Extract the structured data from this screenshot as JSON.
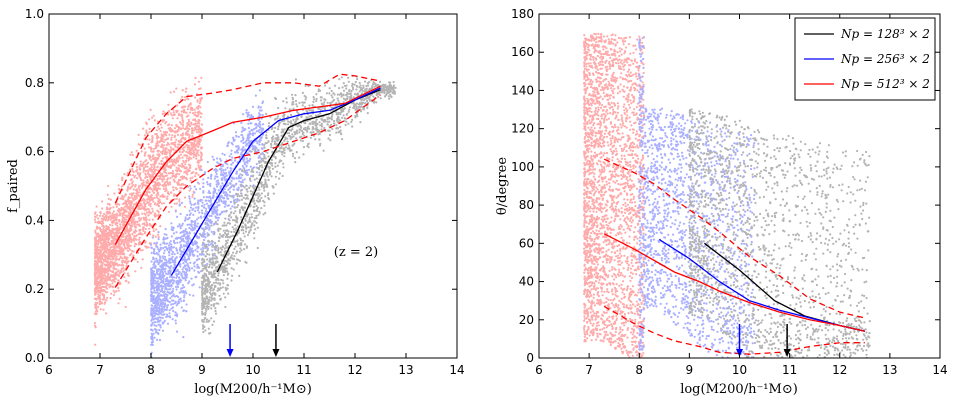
{
  "chart_data": [
    {
      "type": "scatter",
      "panel": "left",
      "xlabel": "log(M200/h⁻¹M⊙)",
      "ylabel": "f_paired",
      "xlim": [
        6,
        14
      ],
      "ylim": [
        0.0,
        1.0
      ],
      "xticks": [
        "6",
        "7",
        "8",
        "9",
        "10",
        "11",
        "12",
        "13",
        "14"
      ],
      "yticks": [
        "0.0",
        "0.2",
        "0.4",
        "0.6",
        "0.8",
        "1.0"
      ],
      "annotation": "(z = 2)",
      "series": [
        {
          "name": "Np = 128³ × 2",
          "color": "#000000",
          "x": [
            9.3,
            9.7,
            10.0,
            10.3,
            10.7,
            11.0,
            11.5,
            12.0,
            12.5
          ],
          "y": [
            0.25,
            0.37,
            0.47,
            0.57,
            0.67,
            0.69,
            0.71,
            0.75,
            0.78
          ]
        },
        {
          "name": "Np = 256³ × 2",
          "color": "#0000ff",
          "x": [
            8.4,
            8.8,
            9.2,
            9.6,
            10.0,
            10.5,
            11.0,
            11.5,
            12.0,
            12.5
          ],
          "y": [
            0.24,
            0.34,
            0.44,
            0.54,
            0.63,
            0.69,
            0.71,
            0.72,
            0.75,
            0.785
          ]
        },
        {
          "name": "Np = 512³ × 2",
          "color": "#ff0000",
          "x": [
            7.3,
            7.9,
            8.3,
            8.7,
            9.2,
            9.6,
            10.2,
            10.8,
            11.3,
            11.8,
            12.5
          ],
          "y": [
            0.33,
            0.49,
            0.57,
            0.63,
            0.66,
            0.685,
            0.7,
            0.72,
            0.73,
            0.74,
            0.79
          ]
        },
        {
          "name": "Np = 512³ × 2 upper",
          "color": "#ff0000",
          "dashed": true,
          "x": [
            7.3,
            7.9,
            8.3,
            8.7,
            9.2,
            9.6,
            10.2,
            10.8,
            11.3,
            11.7,
            12.0,
            12.5
          ],
          "y": [
            0.45,
            0.64,
            0.71,
            0.76,
            0.77,
            0.78,
            0.8,
            0.8,
            0.79,
            0.825,
            0.82,
            0.805
          ]
        },
        {
          "name": "Np = 512³ × 2 lower",
          "color": "#ff0000",
          "dashed": true,
          "x": [
            7.3,
            7.9,
            8.3,
            8.7,
            9.2,
            9.6,
            10.2,
            10.8,
            11.3,
            11.8,
            12.5
          ],
          "y": [
            0.205,
            0.35,
            0.44,
            0.5,
            0.55,
            0.58,
            0.6,
            0.63,
            0.655,
            0.69,
            0.765
          ]
        }
      ],
      "scatter_clouds": [
        {
          "name": "Np = 512³ × 2 halos",
          "color": "#ffaaaa",
          "xrange": [
            6.9,
            9.0
          ]
        },
        {
          "name": "Np = 256³ × 2 halos",
          "color": "#aab0ff",
          "xrange": [
            8.0,
            10.2
          ]
        },
        {
          "name": "Np = 128³ × 2 halos",
          "color": "#b4b4b4",
          "xrange": [
            9.0,
            12.8
          ]
        }
      ],
      "arrows": [
        {
          "x": 9.55,
          "color": "#0000ff"
        },
        {
          "x": 10.45,
          "color": "#000000"
        }
      ]
    },
    {
      "type": "scatter",
      "panel": "right",
      "xlabel": "log(M200/h⁻¹M⊙)",
      "ylabel": "θ/degree",
      "xlim": [
        6,
        14
      ],
      "ylim": [
        0,
        180
      ],
      "xticks": [
        "6",
        "7",
        "8",
        "9",
        "10",
        "11",
        "12",
        "13",
        "14"
      ],
      "yticks": [
        "0",
        "20",
        "40",
        "60",
        "80",
        "100",
        "120",
        "140",
        "160",
        "180"
      ],
      "legend": {
        "placement": "top-right",
        "entries": [
          {
            "label": "Np = 128³ × 2",
            "color": "#000000"
          },
          {
            "label": "Np = 256³ × 2",
            "color": "#0000ff"
          },
          {
            "label": "Np = 512³ × 2",
            "color": "#ff0000"
          }
        ]
      },
      "series": [
        {
          "name": "Np = 128³ × 2",
          "color": "#000000",
          "x": [
            9.3,
            10.0,
            10.7,
            11.3,
            12.0,
            12.5
          ],
          "y": [
            60,
            46,
            30,
            22,
            17,
            14
          ]
        },
        {
          "name": "Np = 256³ × 2",
          "color": "#0000ff",
          "x": [
            8.4,
            9.0,
            9.6,
            10.2,
            10.8,
            11.4,
            12.0,
            12.5
          ],
          "y": [
            62,
            52,
            40,
            30,
            25,
            21,
            17,
            14
          ]
        },
        {
          "name": "Np = 512³ × 2",
          "color": "#ff0000",
          "x": [
            7.3,
            7.9,
            8.3,
            8.7,
            9.2,
            9.6,
            10.2,
            10.8,
            11.4,
            12.0,
            12.5
          ],
          "y": [
            65,
            57,
            51,
            45,
            40,
            35,
            29,
            24,
            20,
            17,
            14
          ]
        },
        {
          "name": "Np = 512³ × 2 upper",
          "color": "#ff0000",
          "dashed": true,
          "x": [
            7.3,
            7.9,
            8.3,
            8.7,
            9.2,
            9.6,
            10.2,
            10.8,
            11.4,
            12.0,
            12.5
          ],
          "y": [
            104,
            97,
            91,
            83,
            74,
            66,
            53,
            43,
            31,
            24,
            21
          ]
        },
        {
          "name": "Np = 512³ × 2 lower",
          "color": "#ff0000",
          "dashed": true,
          "x": [
            7.3,
            7.9,
            8.3,
            8.7,
            9.2,
            9.6,
            10.2,
            10.8,
            11.4,
            12.0,
            12.5
          ],
          "y": [
            27,
            18,
            13,
            9,
            6,
            3,
            2,
            3,
            6,
            8,
            8
          ]
        }
      ],
      "scatter_clouds": [
        {
          "name": "Np = 512³ × 2 halos",
          "color": "#ffaaaa",
          "xrange": [
            6.9,
            8.1
          ]
        },
        {
          "name": "Np = 256³ × 2 halos",
          "color": "#aab0ff",
          "xrange": [
            8.0,
            10.3
          ]
        },
        {
          "name": "Np = 128³ × 2 halos",
          "color": "#b4b4b4",
          "xrange": [
            9.0,
            12.6
          ]
        }
      ],
      "arrows": [
        {
          "x": 10.0,
          "color": "#0000ff"
        },
        {
          "x": 10.95,
          "color": "#000000"
        }
      ]
    }
  ]
}
